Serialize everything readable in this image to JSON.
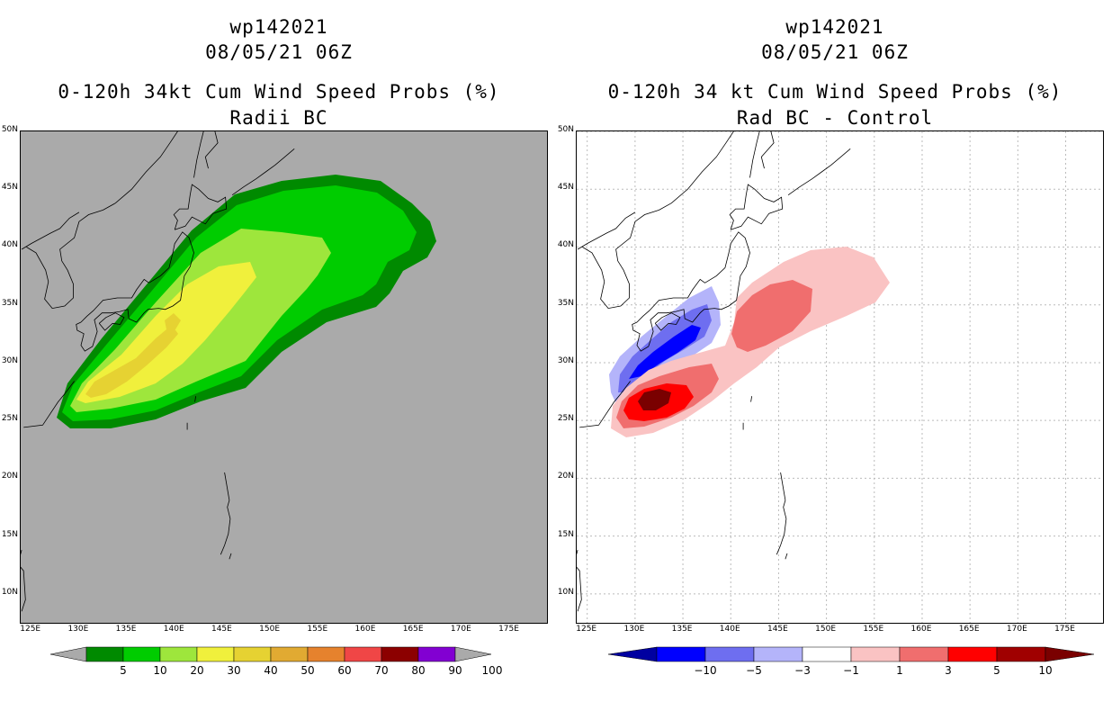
{
  "left": {
    "title1": "wp142021",
    "title2": "08/05/21 06Z",
    "title3": "0-120h 34kt Cum Wind Speed Probs (%)",
    "title4": "Radii BC",
    "colorbar": {
      "labels": [
        "5",
        "10",
        "20",
        "30",
        "40",
        "50",
        "60",
        "70",
        "80",
        "90",
        "100"
      ],
      "colors": [
        "#008a00",
        "#00cc00",
        "#9ee63c",
        "#f0f03c",
        "#e6d232",
        "#e1aa32",
        "#e6822d",
        "#f04646",
        "#8c0000",
        "#8200d2"
      ],
      "extend_color": "#aaaaaa"
    },
    "background_color": "#aaaaaa"
  },
  "right": {
    "title1": "wp142021",
    "title2": "08/05/21 06Z",
    "title3": "0-120h 34 kt Cum Wind Speed Probs (%)",
    "title4": "Rad BC - Control",
    "colorbar": {
      "labels": [
        "−10",
        "−5",
        "−3",
        "−1",
        "1",
        "3",
        "5",
        "10"
      ],
      "colors": [
        "#0000a0",
        "#0000ff",
        "#6e6ef0",
        "#b4b4fa",
        "#ffffff",
        "#fac3c3",
        "#f06e6e",
        "#ff0000",
        "#a00000",
        "#7a0000"
      ],
      "low_color": "#0000a0",
      "high_color": "#7a0000"
    },
    "background_color": "#ffffff"
  },
  "axes": {
    "lat_labels": [
      "50N",
      "45N",
      "40N",
      "35N",
      "30N",
      "25N",
      "20N",
      "15N",
      "10N"
    ],
    "lon_labels": [
      "125E",
      "130E",
      "135E",
      "140E",
      "145E",
      "150E",
      "155E",
      "160E",
      "165E",
      "170E",
      "175E"
    ],
    "lat_values": [
      50,
      45,
      40,
      35,
      30,
      25,
      20,
      15,
      10
    ],
    "lon_values": [
      125,
      130,
      135,
      140,
      145,
      150,
      155,
      160,
      165,
      170,
      175
    ]
  }
}
